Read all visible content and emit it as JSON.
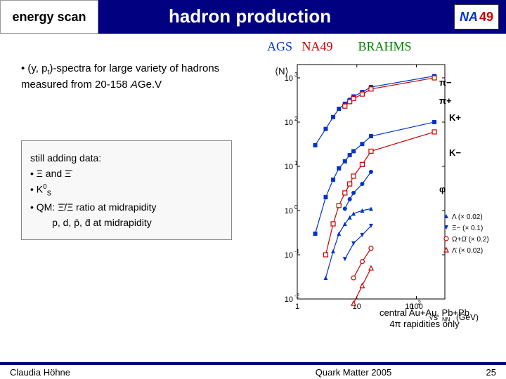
{
  "header": {
    "tab": "energy scan",
    "title": "hadron production",
    "logo_na": "NA",
    "logo_49": "49"
  },
  "experiments": {
    "ags": "AGS",
    "na49": "NA49",
    "brahms": "BRAHMS"
  },
  "bullet1_html": "• (y, p<sub>t</sub>)-spectra for large variety of hadrons measured from 20-158 <i>A</i>Ge.V",
  "box": {
    "l1": "still adding data:",
    "l2": "• Ξ and Ξ̄",
    "l3_html": "• K<sup>0</sup><sub>S</sub>",
    "l4": "• QM: Ξ̄/Ξ ratio at midrapidity",
    "l5": "        p, d, p̄, d̄ at midrapidity"
  },
  "caption_html": "central Au+Au, Pb+Pb<br>4π rapidities only",
  "footer": {
    "author": "Claudia Höhne",
    "conf": "Quark Matter 2005",
    "page": "25"
  },
  "chart": {
    "type": "log-log-scatter",
    "ylabel": "⟨N⟩",
    "xlabel_html": "√s<sub>NN</sub> (GeV)",
    "xlim": [
      1,
      300
    ],
    "ylim": [
      0.01,
      2000.0
    ],
    "xticks": [
      1,
      10,
      100
    ],
    "yticks": [
      0.01,
      0.1,
      1,
      10,
      100,
      1000
    ],
    "background": "#ffffff",
    "axis_color": "#000000",
    "series": [
      {
        "label": "π−",
        "marker": "filled-square",
        "color": "#0033cc",
        "x": [
          2,
          3,
          4,
          5,
          6.3,
          7.6,
          8.8,
          12.3,
          17.3,
          200
        ],
        "y": [
          30,
          70,
          130,
          200,
          260,
          320,
          380,
          480,
          620,
          1100
        ]
      },
      {
        "label": "π+",
        "marker": "open-square",
        "color": "#cc0000",
        "x": [
          6.3,
          7.6,
          8.8,
          12.3,
          17.3,
          200
        ],
        "y": [
          230,
          290,
          340,
          430,
          560,
          1000
        ]
      },
      {
        "label": "K+",
        "marker": "filled-square",
        "color": "#0033cc",
        "x": [
          2,
          3,
          4,
          5,
          6.3,
          7.6,
          8.8,
          12.3,
          17.3,
          200
        ],
        "y": [
          0.3,
          2,
          5,
          9,
          13,
          18,
          22,
          32,
          48,
          100
        ]
      },
      {
        "label": "K−",
        "marker": "open-square",
        "color": "#cc0000",
        "x": [
          3,
          4,
          5,
          6.3,
          7.6,
          8.8,
          12.3,
          17.3,
          200
        ],
        "y": [
          0.1,
          0.5,
          1.3,
          2.5,
          4,
          6,
          11,
          22,
          60
        ]
      },
      {
        "label": "φ",
        "marker": "filled-circle",
        "color": "#0033cc",
        "x": [
          6.3,
          7.6,
          8.8,
          12.3,
          17.3
        ],
        "y": [
          1.1,
          1.8,
          2.5,
          4,
          7.5
        ]
      },
      {
        "label": "Λ (× 0.02)",
        "marker": "filled-triangle-up",
        "color": "#0033cc",
        "x": [
          3,
          4,
          5,
          6.3,
          7.6,
          8.8,
          12.3,
          17.3
        ],
        "y": [
          0.03,
          0.12,
          0.3,
          0.5,
          0.7,
          0.85,
          1.0,
          1.1
        ]
      },
      {
        "label": "Ξ− (× 0.1)",
        "marker": "filled-triangle-down",
        "color": "#0033cc",
        "x": [
          6.3,
          8.8,
          12.3,
          17.3
        ],
        "y": [
          0.08,
          0.18,
          0.28,
          0.45
        ]
      },
      {
        "label": "Ω+Ω̄ (× 0.2)",
        "marker": "open-circle",
        "color": "#cc0000",
        "x": [
          8.8,
          12.3,
          17.3
        ],
        "y": [
          0.03,
          0.07,
          0.14
        ]
      },
      {
        "label": "Λ̄ (× 0.02)",
        "marker": "open-triangle-up",
        "color": "#cc0000",
        "x": [
          8.8,
          12.3,
          17.3
        ],
        "y": [
          0.008,
          0.02,
          0.05
        ]
      }
    ],
    "legend_position": "right-inside",
    "marker_size": 6,
    "line_width": 1.2
  }
}
